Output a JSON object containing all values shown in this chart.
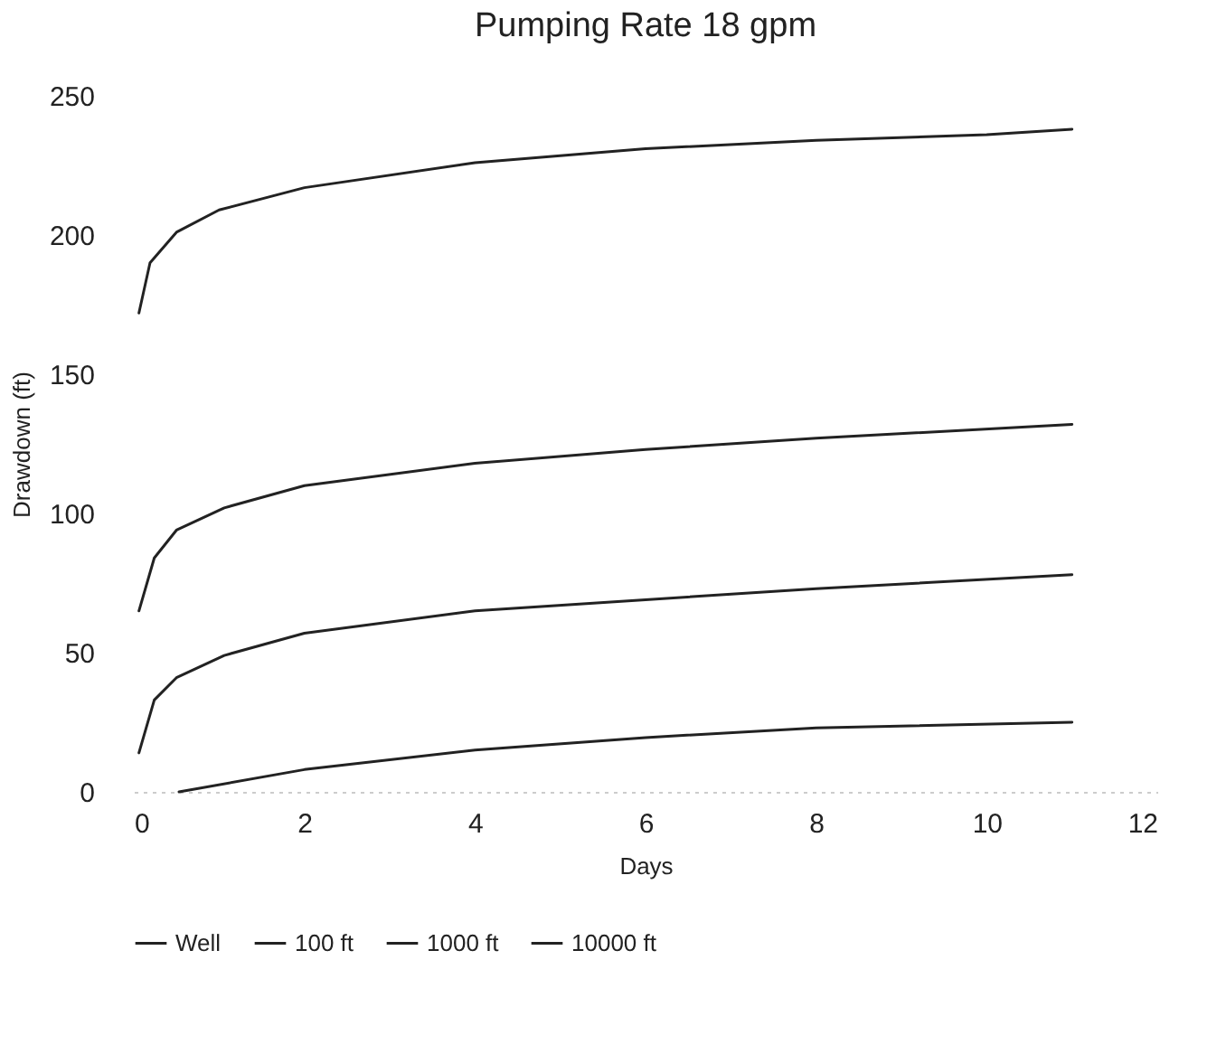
{
  "chart_data": {
    "type": "line",
    "title": "Pumping Rate 18 gpm",
    "xlabel": "Days",
    "ylabel": "Drawdown (ft)",
    "xlim": [
      0,
      12
    ],
    "xticks": [
      0,
      2,
      4,
      6,
      8,
      10,
      12
    ],
    "ylim": [
      0,
      250
    ],
    "yticks": [
      0,
      50,
      100,
      150,
      200,
      250
    ],
    "grid": false,
    "legend": "bottom",
    "marker": "none",
    "line_style": "solid",
    "series": [
      {
        "name": "Well",
        "color": "#222222",
        "x": [
          0.06,
          0.19,
          0.5,
          1,
          2,
          4,
          6,
          8,
          10,
          11
        ],
        "values": [
          172,
          190,
          201,
          209,
          217,
          226,
          231,
          234,
          236,
          238
        ]
      },
      {
        "name": "100 ft",
        "color": "#222222",
        "x": [
          0.06,
          0.24,
          0.5,
          1.06,
          2,
          4,
          6,
          8,
          11
        ],
        "values": [
          65,
          84,
          94,
          102,
          110,
          118,
          123,
          127,
          132
        ]
      },
      {
        "name": "1000 ft",
        "color": "#222222",
        "x": [
          0.06,
          0.24,
          0.5,
          1.06,
          2,
          4,
          6,
          8,
          11
        ],
        "values": [
          14,
          33,
          41,
          49,
          57,
          65,
          69,
          73,
          78
        ]
      },
      {
        "name": "10000 ft",
        "color": "#222222",
        "x": [
          0.53,
          2,
          4,
          6,
          8,
          11
        ],
        "values": [
          0,
          8,
          15,
          19.5,
          23,
          25
        ]
      }
    ]
  }
}
